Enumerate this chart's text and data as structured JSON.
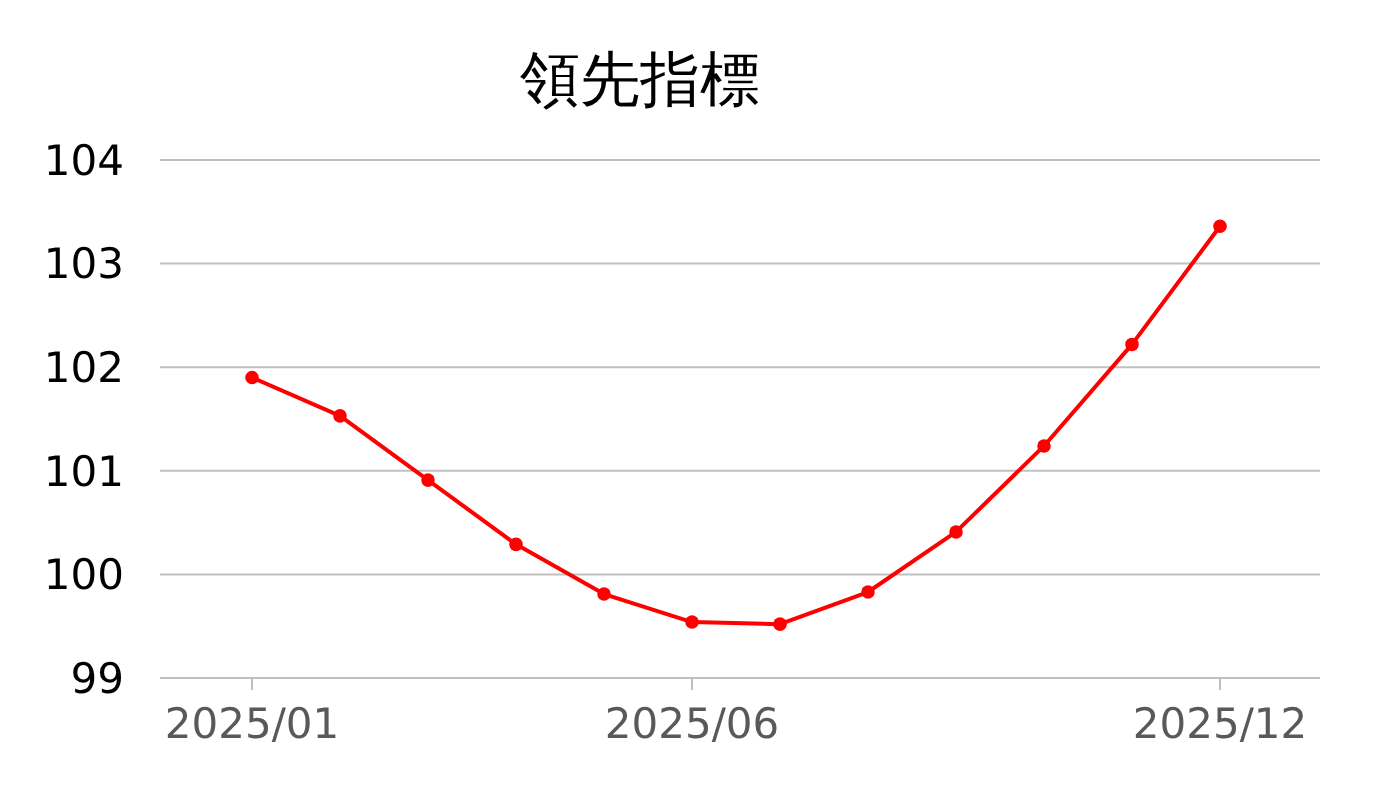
{
  "chart_data": {
    "type": "line",
    "title": "領先指標",
    "categories": [
      "2025/01",
      null,
      null,
      null,
      null,
      "2025/06",
      null,
      null,
      null,
      null,
      null,
      "2025/12"
    ],
    "series": [
      {
        "color": "#ff0000",
        "values": [
          101.9,
          101.53,
          100.91,
          100.29,
          99.81,
          99.54,
          99.52,
          99.83,
          100.41,
          101.24,
          102.22,
          103.36
        ]
      }
    ],
    "ylim": [
      99,
      104
    ],
    "yticks": [
      99,
      100,
      101,
      102,
      103,
      104
    ],
    "grid": "y",
    "marker": "circle",
    "line_style": "solid"
  }
}
